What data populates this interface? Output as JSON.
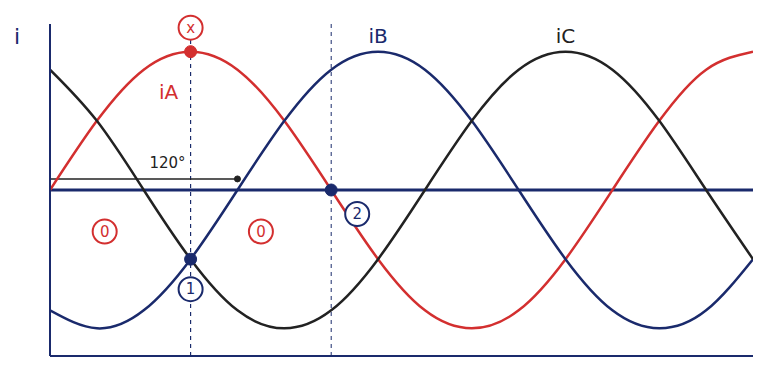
{
  "chart_data": {
    "type": "line",
    "y_label": "i",
    "tick_labels": false,
    "grid": false,
    "xlim": [
      0,
      450
    ],
    "ylim": [
      -1.2,
      1.2
    ],
    "x": [
      0,
      30,
      60,
      90,
      120,
      150,
      180,
      210,
      240,
      270,
      300,
      330,
      360,
      390,
      420,
      450
    ],
    "series": [
      {
        "name": "iA",
        "color": "#d32f2f",
        "values": [
          0,
          0.5,
          0.87,
          1,
          0.87,
          0.5,
          0,
          -0.5,
          -0.87,
          -1,
          -0.87,
          -0.5,
          0,
          0.5,
          0.87,
          1
        ]
      },
      {
        "name": "iB",
        "color": "#1a2a6c",
        "values": [
          -0.87,
          -1,
          -0.87,
          -0.5,
          0,
          0.5,
          0.87,
          1,
          0.87,
          0.5,
          0,
          -0.5,
          -0.87,
          -1,
          -0.87,
          -0.5
        ]
      },
      {
        "name": "iC",
        "color": "#222222",
        "values": [
          0.87,
          0.5,
          0,
          -0.5,
          -0.87,
          -1,
          -0.87,
          -0.5,
          0,
          0.5,
          0.87,
          1,
          0.87,
          0.5,
          0,
          -0.5
        ]
      }
    ],
    "points": [
      {
        "label": "x",
        "x": 90,
        "y": 1,
        "color": "#d32f2f"
      },
      {
        "label": "1",
        "x": 90,
        "y": -0.5,
        "color": "#1a2a6c"
      },
      {
        "label": "2",
        "x": 180,
        "y": 0,
        "color": "#1a2a6c"
      }
    ],
    "annotations": [
      {
        "text": "0",
        "x": 35,
        "y": -0.3,
        "color": "#d32f2f"
      },
      {
        "text": "0",
        "x": 135,
        "y": -0.3,
        "color": "#d32f2f"
      }
    ],
    "arrow": {
      "from": 0,
      "to": 120,
      "y": 0.08,
      "label": "120°"
    }
  }
}
